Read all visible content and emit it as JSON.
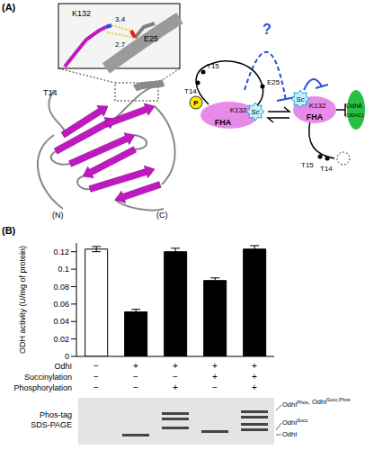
{
  "chart_data": {
    "type": "bar",
    "y_label": "ODH activity (U/mg of protein)",
    "categories": [
      null,
      null,
      null,
      null,
      null
    ],
    "values": [
      0.123,
      0.051,
      0.12,
      0.087,
      0.123
    ],
    "errors": [
      0.003,
      0.003,
      0.004,
      0.003,
      0.004
    ],
    "colors": [
      "#ffffff",
      "#000000",
      "#000000",
      "#000000",
      "#000000"
    ],
    "ylim": [
      0,
      0.13
    ],
    "yticks": [
      0,
      0.02,
      0.04,
      0.06,
      0.08,
      0.1,
      0.12
    ],
    "tick_labels": "y"
  },
  "panel_a": {
    "label": "(A)",
    "structure": {
      "inset": {
        "residue": "K132",
        "d1": 3.4,
        "d2": 2.7,
        "partner": "E25"
      },
      "site": "T14",
      "n_term": "(N)",
      "c_term": "(C)"
    },
    "scheme": {
      "question": "?",
      "left": {
        "sites": [
          "T15",
          "T14"
        ],
        "phospho": "P",
        "succ": "Sc",
        "residue": "K132",
        "domain": "FHA",
        "partner": "E25"
      },
      "right": {
        "succ": "Sc",
        "residue": "K132",
        "domain": "FHA",
        "sites": [
          "T15",
          "T14"
        ]
      },
      "target": {
        "name": "OdhA",
        "sub": "(ODHC)"
      }
    }
  },
  "panel_b": {
    "label": "(B)",
    "table": [
      {
        "label": "OdhI",
        "marks": [
          "−",
          "+",
          "+",
          "+",
          "+"
        ]
      },
      {
        "label": "Succinylation",
        "marks": [
          "−",
          "−",
          "−",
          "+",
          "+"
        ]
      },
      {
        "label": "Phosphorylation",
        "marks": [
          "−",
          "−",
          "+",
          "−",
          "+"
        ]
      }
    ],
    "gel": {
      "label": [
        "Phos-tag",
        "SDS-PAGE"
      ],
      "bands": [
        [
          {
            "t": "OdhI",
            "sup": "Phos"
          },
          {
            "t": ", OdhI",
            "sup": "Succ,Phos"
          }
        ],
        [
          {
            "t": "OdhI",
            "sup": "Succ"
          }
        ],
        [
          {
            "t": "OdhI",
            "sup": ""
          }
        ]
      ]
    }
  }
}
